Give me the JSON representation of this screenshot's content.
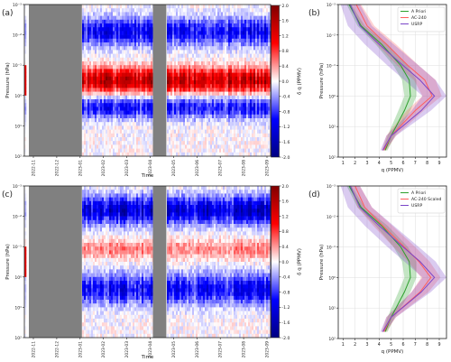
{
  "chart_data": [
    {
      "type": "heatmap",
      "panel_label": "(a)",
      "xlabel": "Time",
      "ylabel": "Pressure (hPa)",
      "x_tick_labels": [
        "2022-11",
        "2022-12",
        "2023-01",
        "2023-02",
        "2023-03",
        "2023-04",
        "2023-05",
        "2023-06",
        "2023-07",
        "2023-08",
        "2023-09"
      ],
      "y_tick_labels": [
        "10⁻³",
        "10⁻²",
        "10⁻¹",
        "10⁰",
        "10¹",
        "10²"
      ],
      "y_scale": "log",
      "ylim": [
        100,
        0.001
      ],
      "missing_data": [
        [
          "2022-11",
          "2023-01"
        ],
        [
          "2023-04",
          "2023-05"
        ]
      ],
      "colorbar": {
        "label": "δ q (PPMV)",
        "range": [
          -2.0,
          2.0
        ],
        "colormap": "seismic",
        "tick_labels": [
          "2.0",
          "1.6",
          "1.2",
          "0.8",
          "0.4",
          "0.0",
          "-0.4",
          "-0.8",
          "-1.2",
          "-1.6",
          "-2.0"
        ]
      },
      "pattern": "positive anomaly near 0.3-1 hPa, negative anomalies above 0.1 hPa and near 1-10 hPa"
    },
    {
      "type": "line",
      "panel_label": "(b)",
      "xlabel": "q (PPMV)",
      "ylabel": "Pressure (hPa)",
      "x_tick_labels": [
        "1",
        "2",
        "3",
        "4",
        "5",
        "6",
        "7",
        "8",
        "9"
      ],
      "xlim": [
        0.6,
        9.6
      ],
      "y_tick_labels": [
        "10⁻³",
        "10⁻²",
        "10⁻¹",
        "10⁰",
        "10¹",
        "10²"
      ],
      "y_scale": "log",
      "ylim": [
        100,
        0.001
      ],
      "grid": true,
      "legend_position": "top-right",
      "series": [
        {
          "name": "A Priori",
          "color": "#2ca02c",
          "x": [
            1.5,
            2.5,
            4.2,
            5.8,
            6.5,
            6.6,
            6.1,
            5.0,
            4.5
          ],
          "y": [
            0.001,
            0.005,
            0.02,
            0.1,
            0.3,
            1,
            3,
            20,
            60
          ],
          "spread": [
            0.2,
            0.3,
            0.5,
            0.6,
            0.6,
            0.5,
            0.5,
            0.3,
            0.2
          ]
        },
        {
          "name": "AC-240",
          "color": "#ff5e5e",
          "x": [
            2.1,
            3.0,
            4.6,
            6.4,
            7.8,
            8.4,
            7.0,
            5.0,
            4.4
          ],
          "y": [
            0.001,
            0.005,
            0.02,
            0.1,
            0.3,
            1,
            3,
            20,
            60
          ],
          "spread": [
            0.4,
            0.6,
            0.8,
            0.9,
            0.9,
            0.8,
            0.7,
            0.4,
            0.2
          ]
        },
        {
          "name": "USRP",
          "color": "#7a45c8",
          "x": [
            1.6,
            2.4,
            4.0,
            6.0,
            7.4,
            8.6,
            7.5,
            5.0,
            4.3
          ],
          "y": [
            0.001,
            0.005,
            0.02,
            0.1,
            0.3,
            1,
            3,
            20,
            60
          ],
          "spread": [
            0.8,
            1.0,
            1.2,
            1.3,
            1.3,
            1.0,
            0.8,
            0.4,
            0.2
          ]
        }
      ]
    },
    {
      "type": "heatmap",
      "panel_label": "(c)",
      "xlabel": "Time",
      "ylabel": "Pressure (hPa)",
      "x_tick_labels": [
        "2022-11",
        "2022-12",
        "2023-01",
        "2023-02",
        "2023-03",
        "2023-04",
        "2023-05",
        "2023-06",
        "2023-07",
        "2023-08",
        "2023-09"
      ],
      "y_tick_labels": [
        "10⁻³",
        "10⁻²",
        "10⁻¹",
        "10⁰",
        "10¹",
        "10²"
      ],
      "y_scale": "log",
      "ylim": [
        100,
        0.001
      ],
      "missing_data": [
        [
          "2022-11",
          "2023-01"
        ],
        [
          "2023-04",
          "2023-05"
        ]
      ],
      "colorbar": {
        "label": "δ q (PPMV)",
        "range": [
          -2.0,
          2.0
        ],
        "colormap": "seismic",
        "tick_labels": [
          "2.0",
          "1.6",
          "1.2",
          "0.8",
          "0.4",
          "0.0",
          "-0.4",
          "-0.8",
          "-1.2",
          "-1.6",
          "-2.0"
        ]
      },
      "pattern": "weak positive anomaly near 0.1-0.5 hPa, negative anomalies above 0.1 hPa and near 1-10 hPa"
    },
    {
      "type": "line",
      "panel_label": "(d)",
      "xlabel": "q (PPMV)",
      "ylabel": "Pressure (hPa)",
      "x_tick_labels": [
        "1",
        "2",
        "3",
        "4",
        "5",
        "6",
        "7",
        "8",
        "9"
      ],
      "xlim": [
        0.6,
        9.6
      ],
      "y_tick_labels": [
        "10⁻³",
        "10⁻²",
        "10⁻¹",
        "10⁰",
        "10¹",
        "10²"
      ],
      "y_scale": "log",
      "ylim": [
        100,
        0.001
      ],
      "grid": true,
      "legend_position": "top-right",
      "series": [
        {
          "name": "A Priori",
          "color": "#2ca02c",
          "x": [
            1.5,
            2.5,
            4.2,
            5.8,
            6.5,
            6.6,
            6.1,
            5.0,
            4.5
          ],
          "y": [
            0.001,
            0.005,
            0.02,
            0.1,
            0.3,
            1,
            3,
            20,
            60
          ],
          "spread": [
            0.2,
            0.3,
            0.5,
            0.6,
            0.6,
            0.5,
            0.5,
            0.3,
            0.2
          ]
        },
        {
          "name": "AC-240 Scaled",
          "color": "#ff5e5e",
          "x": [
            2.0,
            2.8,
            4.3,
            6.1,
            7.3,
            8.3,
            7.4,
            5.0,
            4.4
          ],
          "y": [
            0.001,
            0.005,
            0.02,
            0.1,
            0.3,
            1,
            3,
            20,
            60
          ],
          "spread": [
            0.4,
            0.6,
            0.8,
            0.9,
            0.9,
            0.8,
            0.7,
            0.4,
            0.2
          ]
        },
        {
          "name": "USRP",
          "color": "#7a45c8",
          "x": [
            1.6,
            2.4,
            4.0,
            6.0,
            7.4,
            8.6,
            7.5,
            5.0,
            4.3
          ],
          "y": [
            0.001,
            0.005,
            0.02,
            0.1,
            0.3,
            1,
            3,
            20,
            60
          ],
          "spread": [
            0.8,
            1.0,
            1.2,
            1.3,
            1.3,
            1.0,
            0.8,
            0.4,
            0.2
          ]
        }
      ]
    }
  ]
}
